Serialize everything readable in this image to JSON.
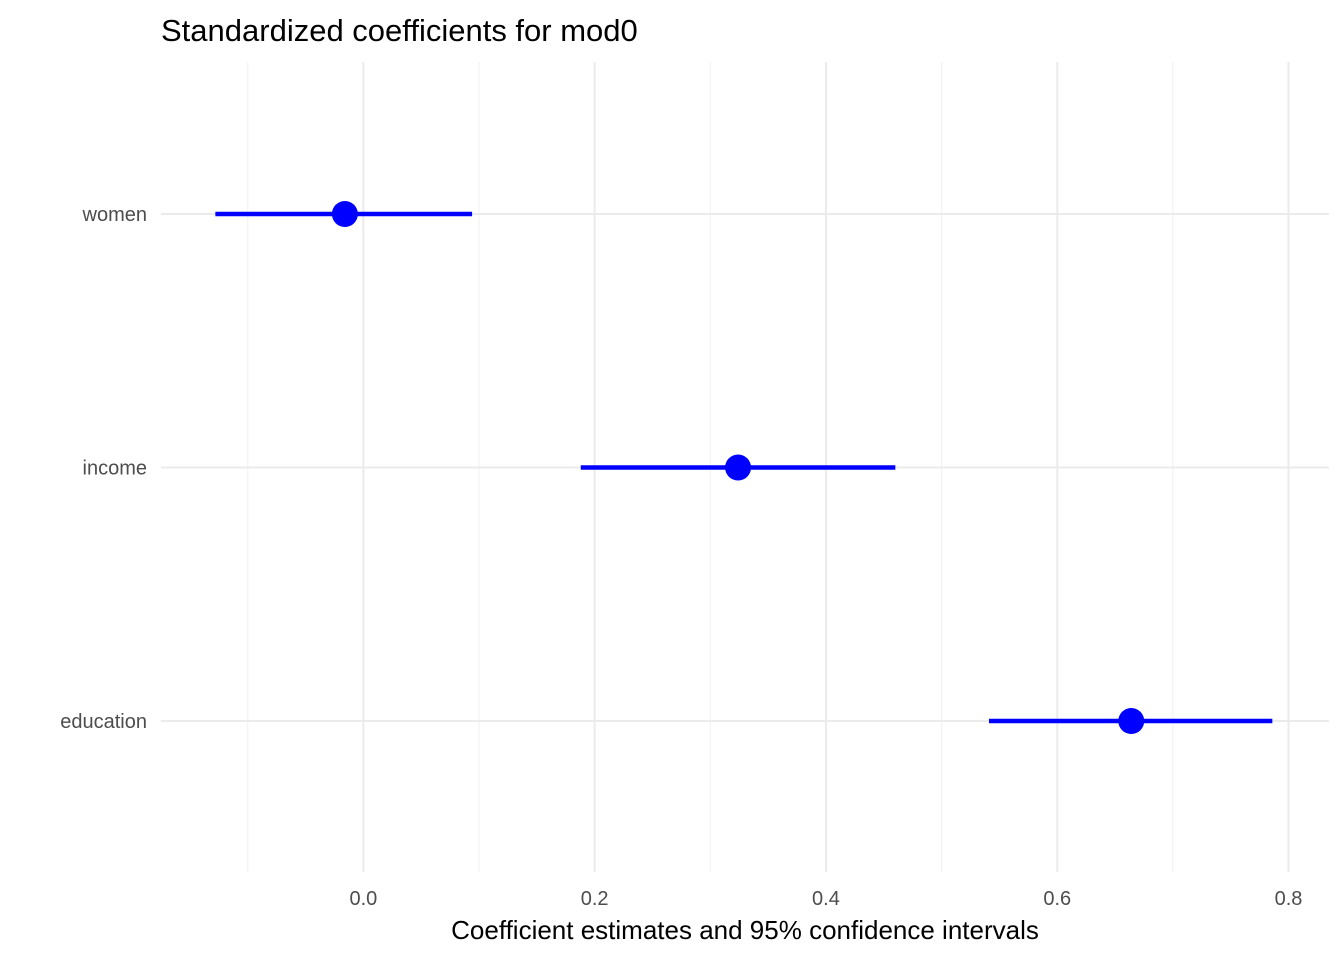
{
  "chart_data": {
    "type": "scatter",
    "title": "Standardized coefficients for mod0",
    "xlabel": "Coefficient estimates and 95% confidence intervals",
    "ylabel": "",
    "xlim": [
      -0.175,
      0.835
    ],
    "x_ticks": [
      0.0,
      0.2,
      0.4,
      0.6,
      0.8
    ],
    "x_tick_labels": [
      "0.0",
      "0.2",
      "0.4",
      "0.6",
      "0.8"
    ],
    "x_minor_ticks": [
      -0.1,
      0.1,
      0.3,
      0.5,
      0.7
    ],
    "categories": [
      "women",
      "income",
      "education"
    ],
    "series": [
      {
        "color": "#0000ff",
        "points": [
          {
            "term": "women",
            "estimate": -0.016,
            "conf_low": -0.128,
            "conf_high": 0.094
          },
          {
            "term": "income",
            "estimate": 0.324,
            "conf_low": 0.188,
            "conf_high": 0.46
          },
          {
            "term": "education",
            "estimate": 0.664,
            "conf_low": 0.541,
            "conf_high": 0.786
          }
        ]
      }
    ],
    "grid": true,
    "legend": "none"
  }
}
